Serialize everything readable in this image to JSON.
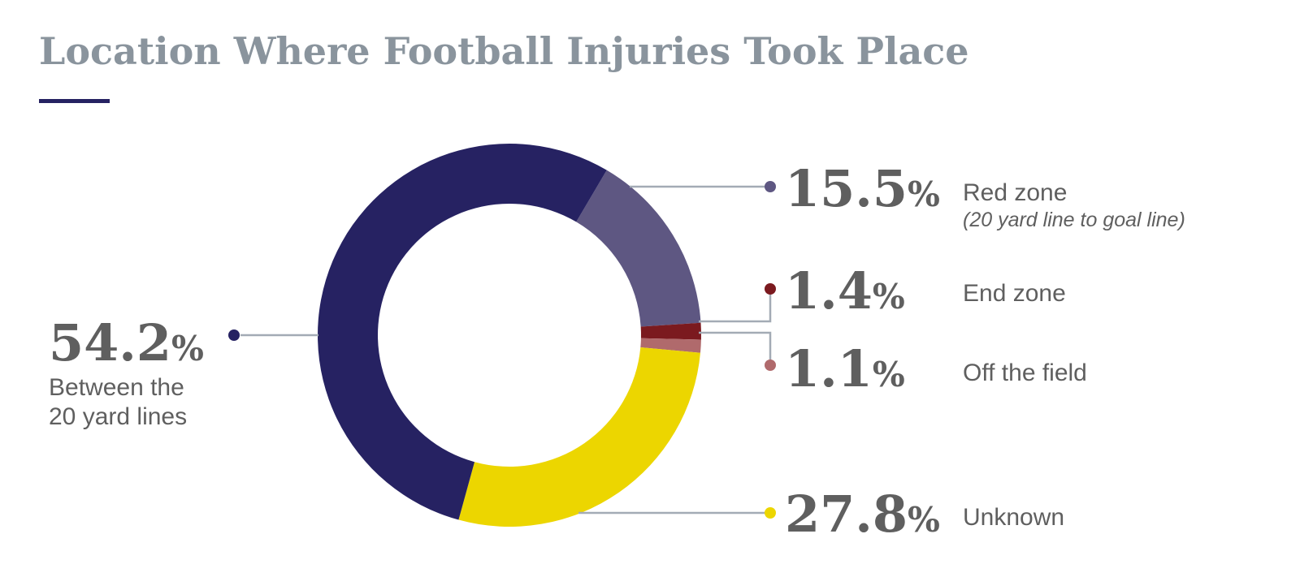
{
  "title": "Location Where Football Injuries Took Place",
  "colors": {
    "title": "#8a949d",
    "accent_rule": "#262262",
    "text": "#5f5f5f",
    "leader_line": "#a3abb5"
  },
  "labels": {
    "between": {
      "num": "54.2",
      "sign": "%",
      "line1": "Between the",
      "line2": "20 yard lines"
    },
    "red_zone": {
      "num": "15.5",
      "sign": "%",
      "label": "Red zone",
      "sub": "(20 yard line to goal line)"
    },
    "end_zone": {
      "num": "1.4",
      "sign": "%",
      "label": "End zone"
    },
    "off_field": {
      "num": "1.1",
      "sign": "%",
      "label": "Off the field"
    },
    "unknown": {
      "num": "27.8",
      "sign": "%",
      "label": "Unknown"
    }
  },
  "chart_data": {
    "type": "pie",
    "subtype": "donut",
    "title": "Location Where Football Injuries Took Place",
    "categories": [
      "Red zone (20 yard line to goal line)",
      "End zone",
      "Off the field",
      "Unknown",
      "Between the 20 yard lines"
    ],
    "values": [
      15.5,
      1.4,
      1.1,
      27.8,
      54.2
    ],
    "unit": "%",
    "colors": [
      "#5e5782",
      "#7b1a1f",
      "#b06a6c",
      "#ecd600",
      "#262262"
    ],
    "legend": "none (callout labels with leader lines)"
  }
}
